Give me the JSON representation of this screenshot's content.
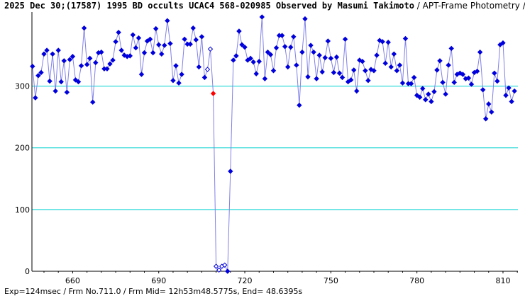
{
  "chart_data": {
    "type": "scatter",
    "title": "2025 Dec 30;(17587) 1995 BD occults UCAC4 568-020985 Observed by Masumi Takimoto",
    "subtitle": " / APT-Frame Photometry /",
    "footer": "Exp=124msec / Frm No.711.0 / Frm Mid= 12h53m48.5775s,  End= 48.6395s",
    "xlabel": "",
    "ylabel": "",
    "xlim": [
      645.8,
      815.2
    ],
    "ylim": [
      0,
      420
    ],
    "x_ticks": [
      660,
      690,
      720,
      750,
      780,
      810
    ],
    "y_ticks": [
      0,
      100,
      200,
      300
    ],
    "gridlines_y": [
      100,
      200,
      300
    ],
    "colors": {
      "grid": "#00d0d0",
      "line": "#8080e8",
      "point": "#0000dd",
      "open_point": "#0000dd",
      "marked_point": "#ff0000"
    },
    "series": [
      {
        "x0": 646,
        "values": [
          332,
          281,
          317,
          322,
          352,
          358,
          308,
          352,
          292,
          358,
          307,
          341,
          290,
          343,
          348,
          310,
          307,
          333,
          394,
          335,
          345,
          274,
          338,
          354,
          355,
          328,
          328,
          336,
          342,
          372,
          387,
          358,
          350,
          348,
          349,
          383,
          362,
          378,
          319,
          354,
          373,
          376,
          354,
          393,
          367,
          352,
          366,
          406,
          369,
          309,
          333,
          305,
          319,
          376,
          368,
          368,
          394,
          375,
          331,
          380,
          314,
          327,
          360,
          288,
          8,
          2,
          8,
          10,
          0,
          162,
          342,
          349,
          389,
          367,
          363,
          342,
          345,
          339,
          320,
          340,
          412,
          312,
          355,
          351,
          325,
          362,
          382,
          382,
          364,
          331,
          363,
          380,
          334,
          269,
          355,
          409,
          315,
          366,
          355,
          312,
          350,
          323,
          346,
          373,
          345,
          322,
          347,
          321,
          314,
          376,
          307,
          310,
          326,
          292,
          342,
          340,
          325,
          309,
          327,
          325,
          350,
          374,
          372,
          337,
          371,
          331,
          352,
          325,
          334,
          305,
          377,
          304,
          304,
          314,
          285,
          282,
          296,
          278,
          287,
          275,
          291,
          326,
          341,
          306,
          287,
          334,
          361,
          306,
          319,
          321,
          319,
          312,
          313,
          303,
          322,
          324,
          355,
          294,
          247,
          271,
          258,
          321,
          308,
          367,
          370,
          285,
          297,
          275,
          292
        ],
        "open_indices": [
          61,
          62,
          64,
          65,
          66,
          67
        ],
        "marked_indices": [
          63
        ]
      }
    ]
  }
}
